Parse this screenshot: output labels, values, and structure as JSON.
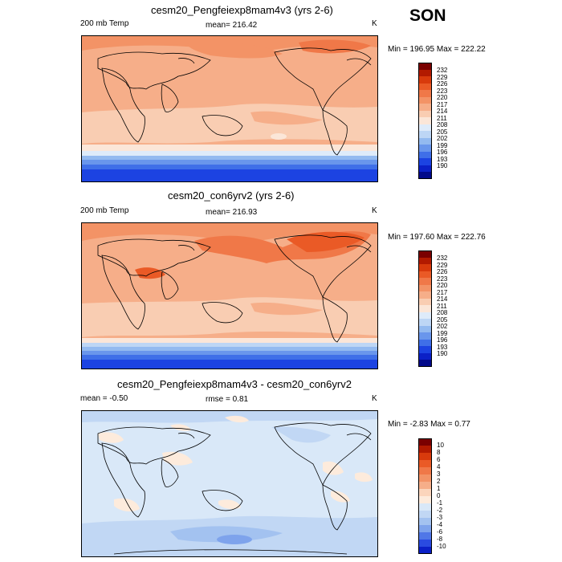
{
  "season": "SON",
  "panels": [
    {
      "title": "cesm20_Pengfeiexp8mam4v3 (yrs 2-6)",
      "left": "200 mb Temp",
      "center": "mean= 216.42",
      "right": "K",
      "minmax": "Min = 196.95 Max = 222.22",
      "colorbar_labels": [
        "232",
        "229",
        "226",
        "223",
        "220",
        "217",
        "214",
        "211",
        "208",
        "205",
        "202",
        "199",
        "196",
        "193",
        "190"
      ]
    },
    {
      "title": "cesm20_con6yrv2 (yrs 2-6)",
      "left": "200 mb Temp",
      "center": "mean= 216.93",
      "right": "K",
      "minmax": "Min = 197.60 Max = 222.76",
      "colorbar_labels": [
        "232",
        "229",
        "226",
        "223",
        "220",
        "217",
        "214",
        "211",
        "208",
        "205",
        "202",
        "199",
        "196",
        "193",
        "190"
      ]
    },
    {
      "title": "cesm20_Pengfeiexp8mam4v3 - cesm20_con6yrv2",
      "left": "mean =  -0.50",
      "center": "rmse =   0.81",
      "right": "K",
      "minmax": "Min =  -2.83 Max =   0.77",
      "colorbar_labels": [
        "10",
        "8",
        "6",
        "4",
        "3",
        "2",
        "1",
        "0",
        "-1",
        "-2",
        "-3",
        "-4",
        "-6",
        "-8",
        "-10"
      ]
    }
  ],
  "colors": {
    "abs_scale": [
      "#7a0000",
      "#b21a00",
      "#d83a0c",
      "#ea5a26",
      "#f07848",
      "#f39366",
      "#f6ae89",
      "#f9cdb2",
      "#fbe6d8",
      "#deebfa",
      "#bdd6f5",
      "#93baf0",
      "#6996ec",
      "#3f6fe8",
      "#1c43e2",
      "#0b20c7",
      "#020a8a"
    ],
    "diff_scale": [
      "#7a0000",
      "#b21a00",
      "#d83a0c",
      "#ea5a26",
      "#f07848",
      "#f39366",
      "#f6ae89",
      "#fbd5bc",
      "#fdebdc",
      "#d9e8f8",
      "#c1d7f4",
      "#a3c2f0",
      "#7ea3ec",
      "#5077e7",
      "#2a4be0",
      "#0b20c7"
    ]
  }
}
